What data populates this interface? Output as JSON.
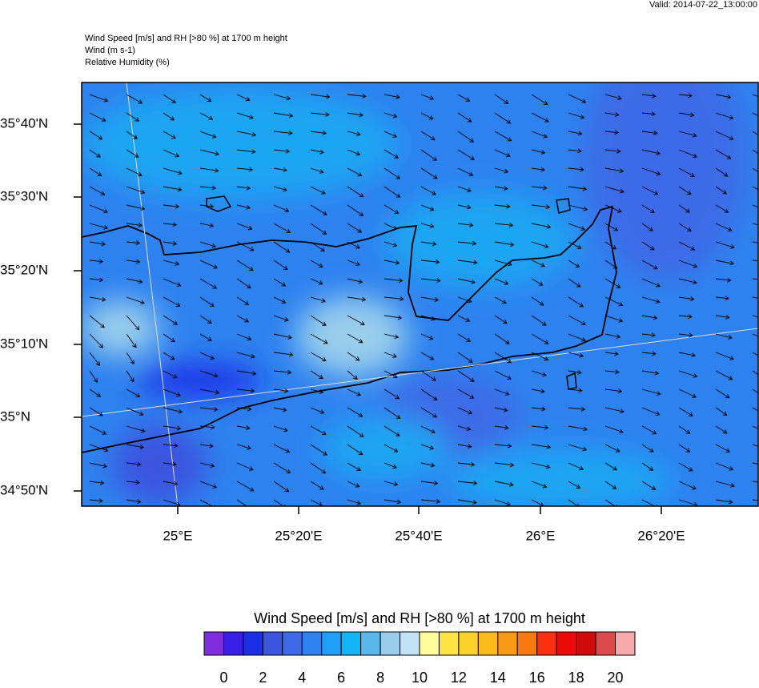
{
  "valid": "Valid: 2014-07-22_13:00:00",
  "header": {
    "lines": [
      "Wind Speed [m/s] and RH [>80 %] at 1700 m height",
      "Wind   (m s-1)",
      "Relative Humidity   (%)"
    ]
  },
  "map": {
    "lat_labels": [
      "35°40'N",
      "35°30'N",
      "35°20'N",
      "35°10'N",
      "35°N",
      "34°50'N"
    ],
    "lon_labels": [
      "25°E",
      "25°20'E",
      "25°40'E",
      "26°E",
      "26°20'E"
    ]
  },
  "colorbar": {
    "title": "Wind Speed [m/s] and RH [>80 %] at 1700 m height",
    "colors": [
      "#7f2be0",
      "#3a1ee8",
      "#1b2fe8",
      "#3a55e0",
      "#3d6ae8",
      "#2e82f0",
      "#1f9ef5",
      "#12b5f5",
      "#5ab8ec",
      "#98cdec",
      "#bfe3f5",
      "#fff999",
      "#fce444",
      "#fcd22a",
      "#fbb91c",
      "#fb9914",
      "#fb7a10",
      "#fa3010",
      "#ee0a0a",
      "#d00a0a",
      "#dd4a4a",
      "#f7aaaa"
    ],
    "ticks": [
      0,
      2,
      4,
      6,
      8,
      10,
      12,
      14,
      16,
      18,
      20
    ]
  }
}
